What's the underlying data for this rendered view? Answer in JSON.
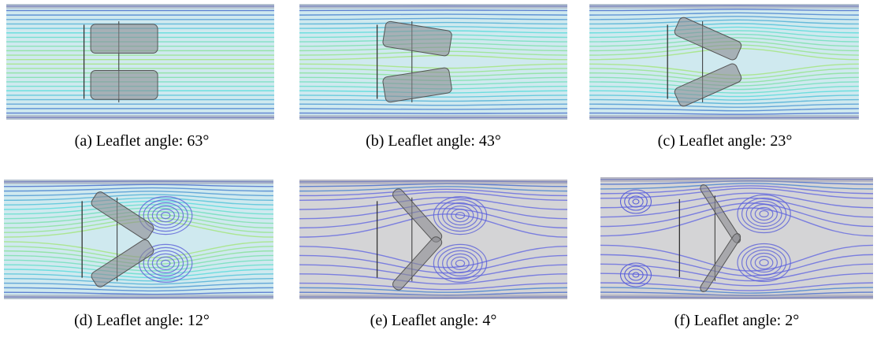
{
  "figure": {
    "panels": [
      {
        "caption": "(a) Leaflet angle: 63°"
      },
      {
        "caption": "(b) Leaflet angle: 43°"
      },
      {
        "caption": "(c) Leaflet angle: 23°"
      },
      {
        "caption": "(d) Leaflet angle: 12°"
      },
      {
        "caption": "(e) Leaflet angle: 4°"
      },
      {
        "caption": "(f) Leaflet angle: 2°"
      }
    ]
  }
}
